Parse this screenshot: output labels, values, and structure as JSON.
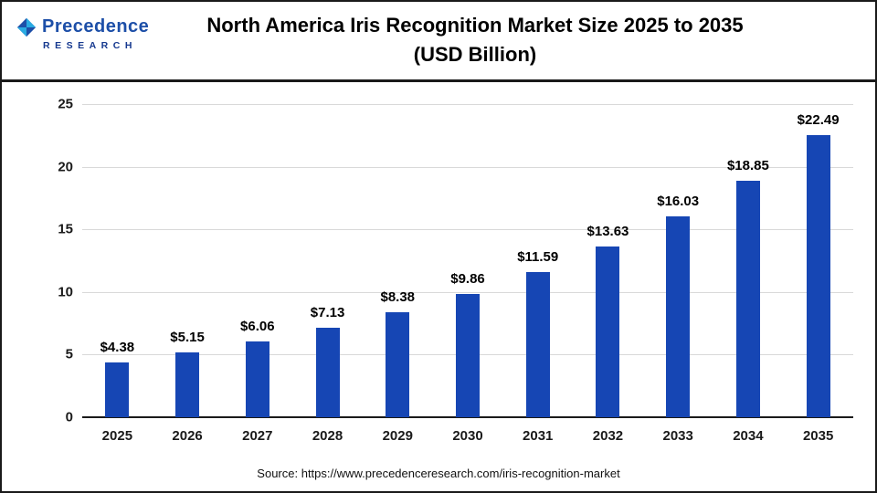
{
  "logo": {
    "line1": "Precedence",
    "line2": "RESEARCH"
  },
  "header": {
    "title_line1": "North America Iris Recognition Market Size 2025 to 2035",
    "title_line2": "(USD Billion)"
  },
  "footer": {
    "source": "Source: https://www.precedenceresearch.com/iris-recognition-market"
  },
  "colors": {
    "bar": "#1646b4",
    "grid": "#d9d9d9",
    "logo_blue": "#1d4fa8"
  },
  "chart_data": {
    "type": "bar",
    "title": "North America Iris Recognition Market Size 2025 to 2035 (USD Billion)",
    "categories": [
      "2025",
      "2026",
      "2027",
      "2028",
      "2029",
      "2030",
      "2031",
      "2032",
      "2033",
      "2034",
      "2035"
    ],
    "values": [
      4.38,
      5.15,
      6.06,
      7.13,
      8.38,
      9.86,
      11.59,
      13.63,
      16.03,
      18.85,
      22.49
    ],
    "labels": [
      "$4.38",
      "$5.15",
      "$6.06",
      "$7.13",
      "$8.38",
      "$9.86",
      "$11.59",
      "$13.63",
      "$16.03",
      "$18.85",
      "$22.49"
    ],
    "xlabel": "",
    "ylabel": "",
    "ylim": [
      0,
      25
    ],
    "yticks": [
      0,
      5,
      10,
      15,
      20,
      25
    ],
    "grid": true,
    "legend": "none",
    "bar_color": "#1646b4"
  }
}
